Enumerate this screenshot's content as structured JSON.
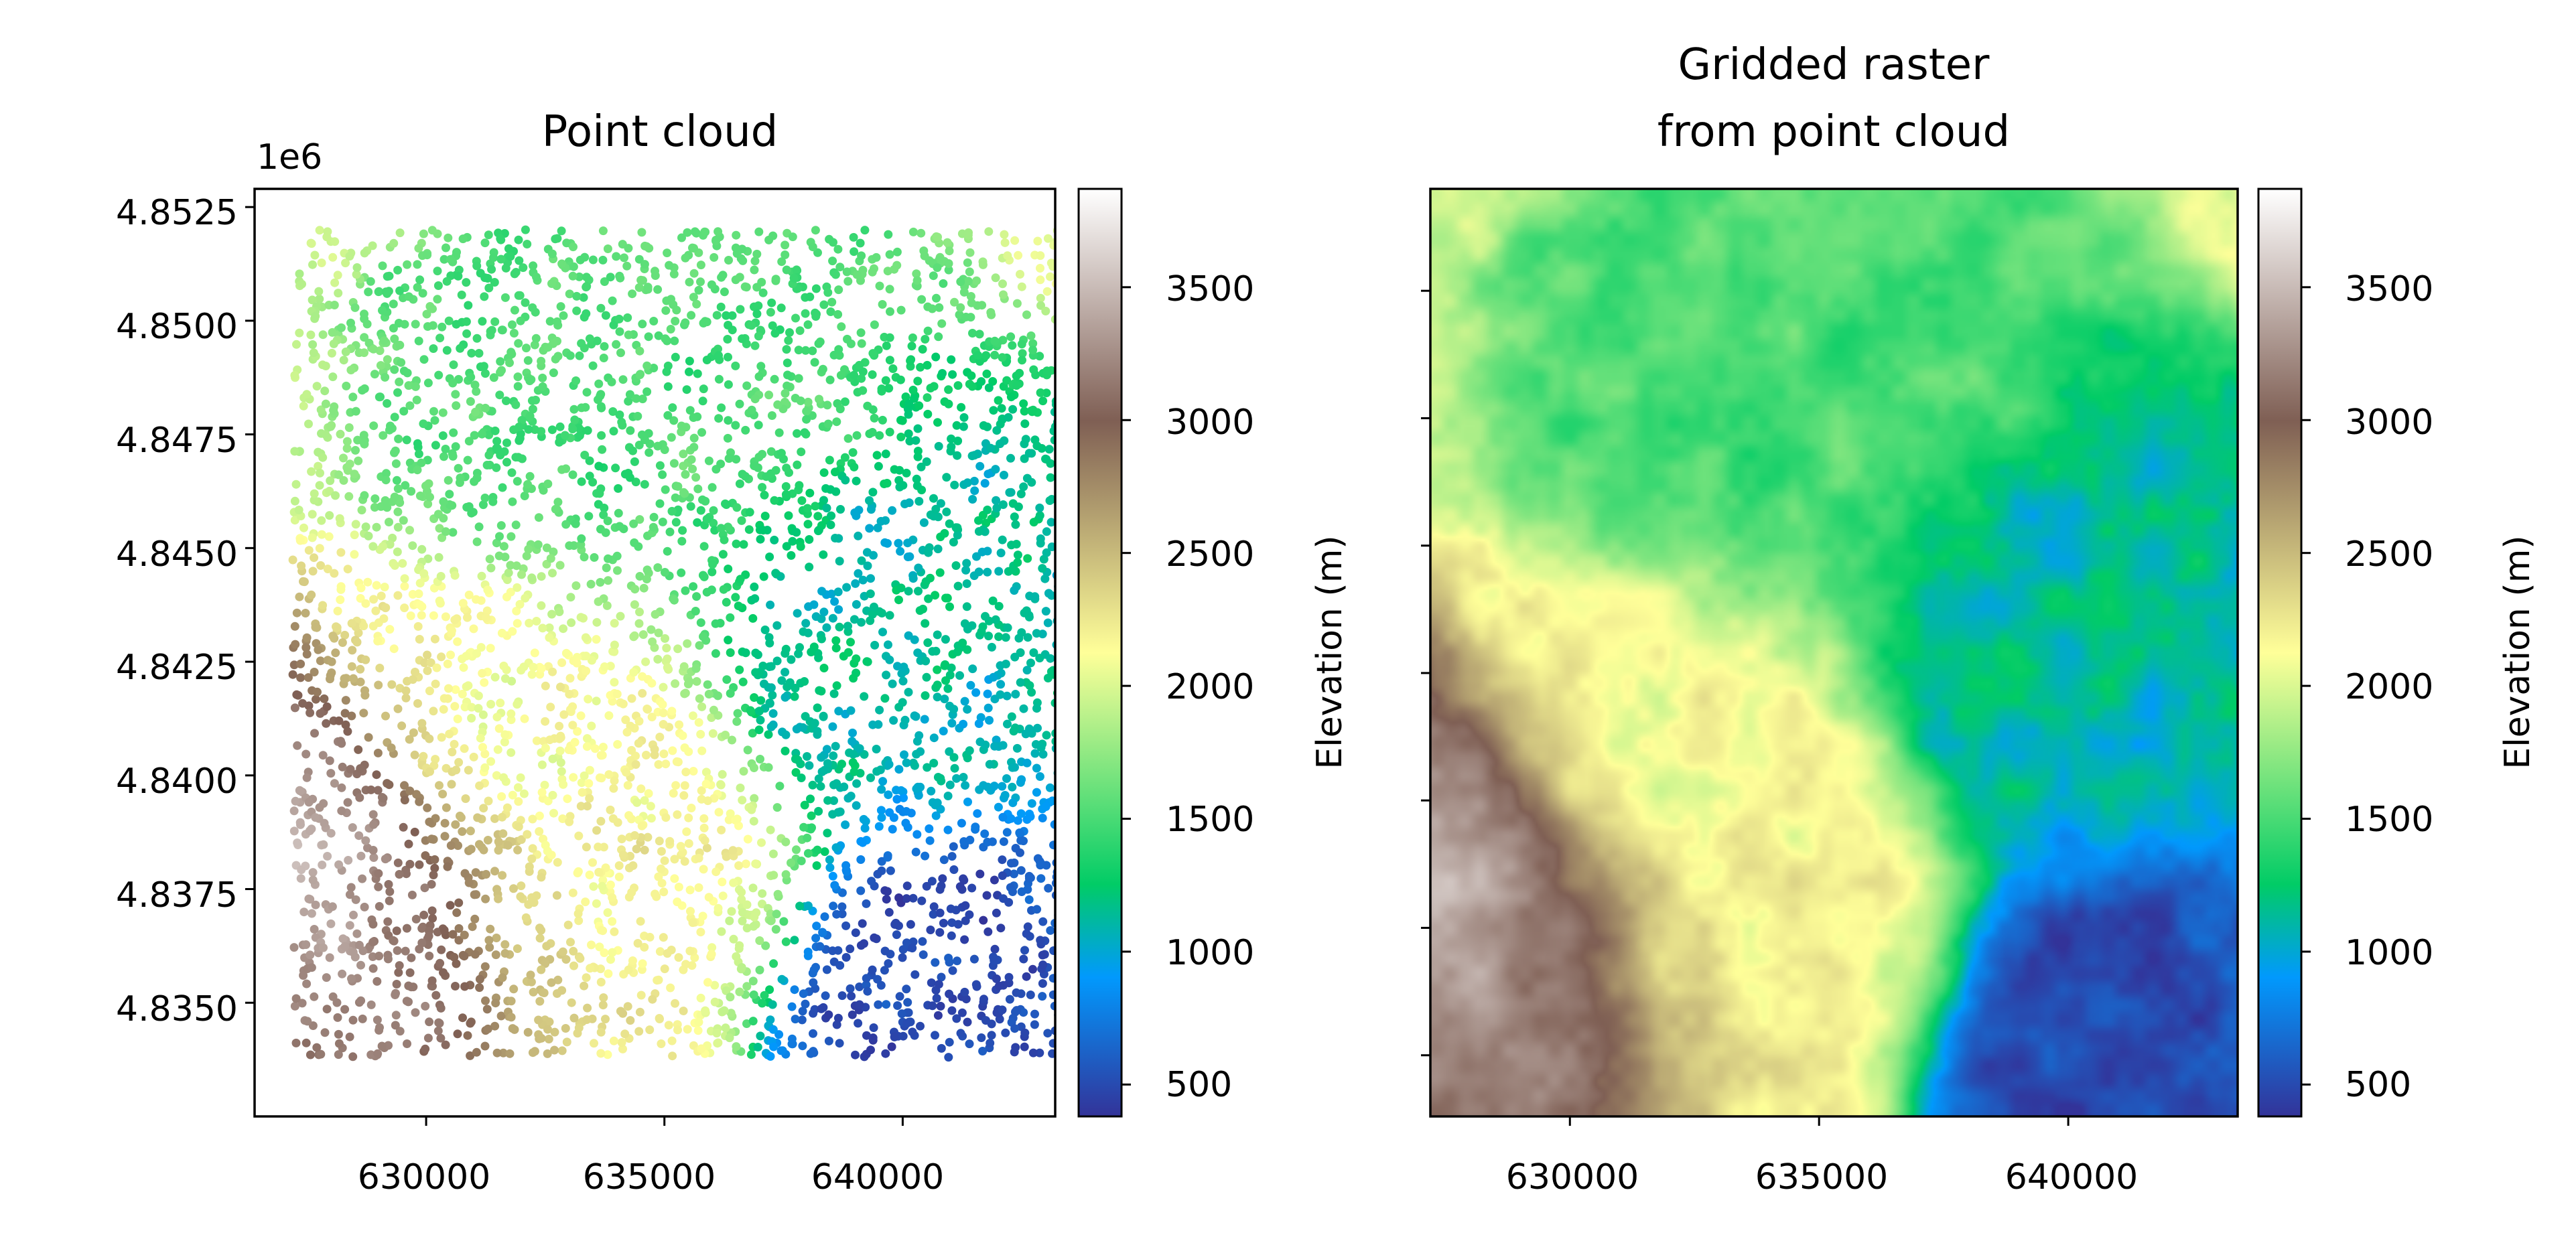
{
  "chart_data": [
    {
      "type": "scatter",
      "title": "Point cloud",
      "xlabel": "",
      "ylabel": "",
      "y_offset_label": "1e6",
      "xlim": [
        626400,
        643200
      ],
      "ylim": [
        4832500,
        4852900
      ],
      "xticks": [
        630000,
        635000,
        640000
      ],
      "xtick_labels": [
        "630000",
        "635000",
        "640000"
      ],
      "yticks": [
        4835000,
        4837500,
        4840000,
        4842500,
        4845000,
        4847500,
        4850000,
        4852500
      ],
      "ytick_labels": [
        "4.8350",
        "4.8375",
        "4.8400",
        "4.8425",
        "4.8450",
        "4.8475",
        "4.8500",
        "4.8525"
      ],
      "colormap": "terrain",
      "point_extent": {
        "x": [
          627200,
          643600
        ],
        "y": [
          4833800,
          4852000
        ]
      },
      "elevation_features": [
        {
          "x": 628200,
          "y": 4837000,
          "elevation": 3500
        },
        {
          "x": 629000,
          "y": 4835200,
          "elevation": 3000
        },
        {
          "x": 632500,
          "y": 4840000,
          "elevation": 2100
        },
        {
          "x": 633500,
          "y": 4836500,
          "elevation": 2200
        },
        {
          "x": 641000,
          "y": 4834500,
          "elevation": 500
        },
        {
          "x": 640000,
          "y": 4843000,
          "elevation": 1100
        },
        {
          "x": 635000,
          "y": 4848000,
          "elevation": 1500
        }
      ],
      "colorbar": {
        "label": "Elevation (m)",
        "range": [
          380,
          3870
        ],
        "ticks": [
          500,
          1000,
          1500,
          2000,
          2500,
          3000,
          3500
        ],
        "tick_labels": [
          "500",
          "1000",
          "1500",
          "2000",
          "2500",
          "3000",
          "3500"
        ]
      }
    },
    {
      "type": "heatmap",
      "title": "Gridded raster",
      "title_line2": "from point cloud",
      "xlabel": "",
      "ylabel": "",
      "xlim": [
        627200,
        643400
      ],
      "ylim": [
        4833800,
        4852000
      ],
      "xticks": [
        630000,
        635000,
        640000
      ],
      "xtick_labels": [
        "630000",
        "635000",
        "640000"
      ],
      "colormap": "terrain",
      "colorbar": {
        "label": "Elevation (m)",
        "range": [
          380,
          3870
        ],
        "ticks": [
          500,
          1000,
          1500,
          2000,
          2500,
          3000,
          3500
        ],
        "tick_labels": [
          "500",
          "1000",
          "1500",
          "2000",
          "2500",
          "3000",
          "3500"
        ]
      }
    }
  ]
}
